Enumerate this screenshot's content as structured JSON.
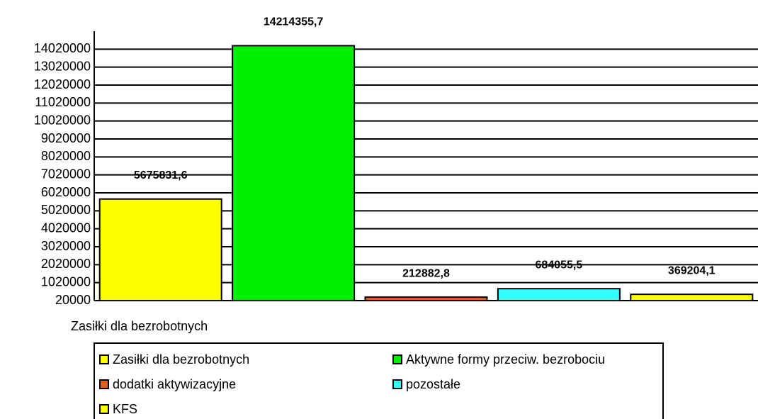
{
  "chart_data": {
    "type": "bar",
    "categories": [
      "Zasiłki dla bezrobotnych"
    ],
    "series": [
      {
        "name": "Zasiłki dla bezrobotnych",
        "color": "#ffff00",
        "values": [
          5675831.6
        ],
        "value_labels": [
          "5675831,6"
        ]
      },
      {
        "name": "Aktywne formy przeciw. bezrobociu",
        "color": "#00ee00",
        "values": [
          14214355.7
        ],
        "value_labels": [
          "14214355,7"
        ]
      },
      {
        "name": "dodatki aktywizacyjne",
        "color": "#e0601c",
        "values": [
          212882.8
        ],
        "value_labels": [
          "212882,8"
        ]
      },
      {
        "name": "pozostałe",
        "color": "#33ffff",
        "values": [
          684055.5
        ],
        "value_labels": [
          "684055,5"
        ]
      },
      {
        "name": "KFS",
        "color": "#ffff00",
        "values": [
          369204.1
        ],
        "value_labels": [
          "369204,1"
        ]
      }
    ],
    "ylim": [
      20000,
      15020000
    ],
    "yticks": [
      20000,
      1020000,
      2020000,
      3020000,
      4020000,
      5020000,
      6020000,
      7020000,
      8020000,
      9020000,
      10020000,
      11020000,
      12020000,
      13020000,
      14020000
    ],
    "grid": true
  }
}
